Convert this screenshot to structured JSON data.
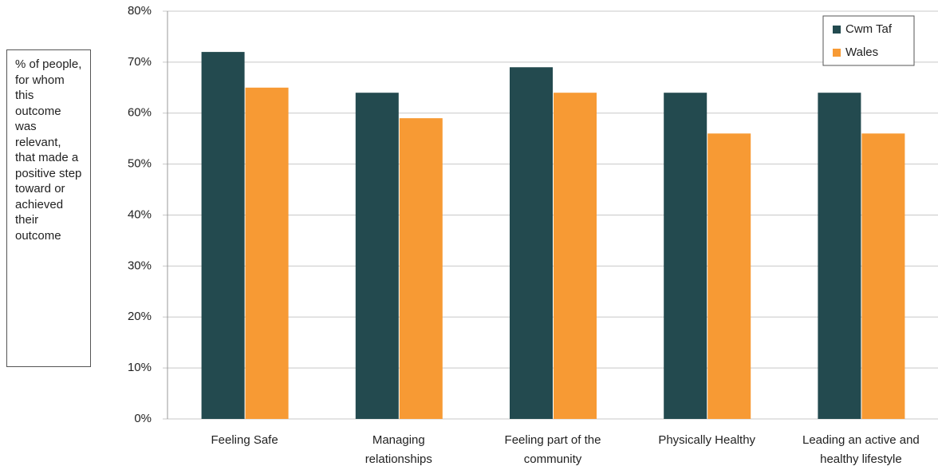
{
  "chart_data": {
    "type": "bar",
    "y_axis_label": "% of people, for whom this outcome was relevant, that made a positive step toward or achieved their outcome",
    "categories": [
      "Feeling Safe",
      "Managing relationships",
      "Feeling part of the community",
      "Physically Healthy",
      "Leading an active and healthy lifestyle"
    ],
    "series": [
      {
        "name": "Cwm Taf",
        "color": "#234a4f",
        "values": [
          72,
          64,
          69,
          64,
          64
        ]
      },
      {
        "name": "Wales",
        "color": "#f79a34",
        "values": [
          65,
          59,
          64,
          56,
          56
        ]
      }
    ],
    "ylim": [
      0,
      80
    ],
    "yticks": [
      {
        "value": 0,
        "label": "0%"
      },
      {
        "value": 10,
        "label": "10%"
      },
      {
        "value": 20,
        "label": "20%"
      },
      {
        "value": 30,
        "label": "30%"
      },
      {
        "value": 40,
        "label": "40%"
      },
      {
        "value": 50,
        "label": "50%"
      },
      {
        "value": 60,
        "label": "60%"
      },
      {
        "value": 70,
        "label": "70%"
      },
      {
        "value": 80,
        "label": "80%"
      }
    ],
    "grid": true,
    "legend": "top-right"
  }
}
